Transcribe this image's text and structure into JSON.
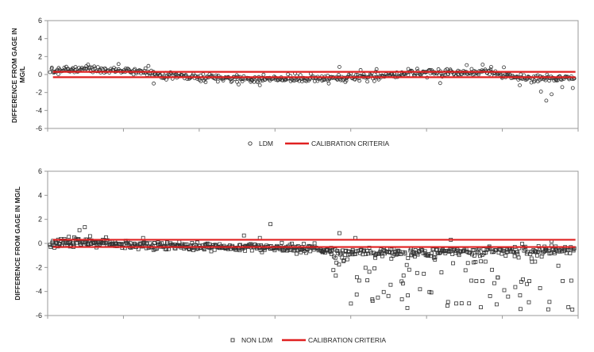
{
  "chart_data": [
    {
      "type": "scatter",
      "ylabel": "DIFFERENCE FROM GAGE IN MG/L",
      "ylim": [
        -6,
        6
      ],
      "yticks": [
        6,
        4,
        2,
        0,
        -2,
        -4,
        -6
      ],
      "x_ticks_count": 7,
      "xlim": [
        0,
        1
      ],
      "grid": false,
      "legend_position": "bottom-center",
      "series": [
        {
          "name": "LDM",
          "marker": "circle",
          "color": "#333333",
          "n_points": 620,
          "seed": 7,
          "trend_x": [
            0.0,
            0.06,
            0.12,
            0.18,
            0.22,
            0.3,
            0.4,
            0.5,
            0.6,
            0.7,
            0.78,
            0.82,
            0.86,
            0.92,
            0.95,
            1.0
          ],
          "trend_y": [
            0.3,
            0.65,
            0.45,
            0.4,
            -0.15,
            -0.35,
            -0.5,
            -0.45,
            -0.35,
            0.25,
            0.15,
            0.4,
            0.0,
            -0.45,
            -0.4,
            -0.35
          ],
          "spread": 0.35,
          "outliers": [
            [
              0.19,
              0.95
            ],
            [
              0.2,
              -1.0
            ],
            [
              0.4,
              -1.2
            ],
            [
              0.53,
              -1.0
            ],
            [
              0.55,
              0.85
            ],
            [
              0.59,
              0.5
            ],
            [
              0.62,
              0.6
            ],
            [
              0.79,
              1.05
            ],
            [
              0.82,
              1.1
            ],
            [
              0.86,
              0.8
            ],
            [
              0.89,
              -1.2
            ],
            [
              0.93,
              -1.9
            ],
            [
              0.94,
              -2.9
            ],
            [
              0.95,
              -2.2
            ],
            [
              0.97,
              -1.4
            ],
            [
              0.99,
              -1.5
            ],
            [
              0.74,
              -0.95
            ],
            [
              0.36,
              -1.1
            ]
          ]
        },
        {
          "name": "CALIBRATION CRITERIA",
          "type": "line",
          "color": "#e02020",
          "values": [
            0.3,
            -0.3
          ]
        }
      ]
    },
    {
      "type": "scatter",
      "ylabel": "DIFFERENCE FROM GAGE IN MG/L",
      "ylim": [
        -6,
        6
      ],
      "yticks": [
        6,
        4,
        2,
        0,
        -2,
        -4,
        -6
      ],
      "x_ticks_count": 7,
      "xlim": [
        0,
        1
      ],
      "grid": false,
      "legend_position": "bottom-center",
      "series": [
        {
          "name": "NON LDM",
          "marker": "square",
          "color": "#333333",
          "n_points": 720,
          "seed": 13,
          "trend_x": [
            0.0,
            0.05,
            0.1,
            0.2,
            0.3,
            0.4,
            0.5,
            0.55,
            0.65,
            0.75,
            0.85,
            0.92,
            1.0
          ],
          "trend_y": [
            -0.1,
            0.1,
            0.0,
            -0.2,
            -0.3,
            -0.35,
            -0.4,
            -0.7,
            -0.8,
            -0.7,
            -0.6,
            -0.6,
            -0.5
          ],
          "spread": 0.3,
          "spike_start": 0.53,
          "spike_rate": 0.35,
          "spike_min": -0.5,
          "spike_max": -5.6,
          "outliers": [
            [
              0.04,
              0.55
            ],
            [
              0.05,
              0.5
            ],
            [
              0.06,
              1.1
            ],
            [
              0.07,
              1.35
            ],
            [
              0.08,
              0.6
            ],
            [
              0.11,
              0.5
            ],
            [
              0.18,
              0.45
            ],
            [
              0.37,
              0.65
            ],
            [
              0.42,
              1.6
            ],
            [
              0.4,
              0.45
            ],
            [
              0.55,
              0.85
            ],
            [
              0.58,
              0.45
            ],
            [
              0.76,
              0.3
            ],
            [
              0.95,
              0.2
            ]
          ]
        },
        {
          "name": "CALIBRATION CRITERIA",
          "type": "line",
          "color": "#e02020",
          "values": [
            0.3,
            -0.3
          ]
        }
      ]
    }
  ]
}
